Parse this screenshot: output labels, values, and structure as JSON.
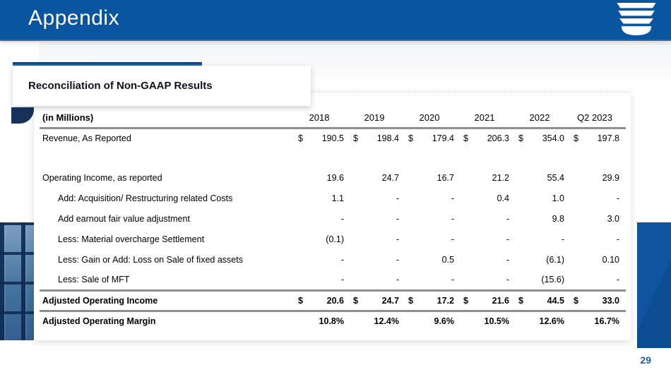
{
  "header": {
    "title": "Appendix",
    "logo_icon": "stacked-u-company-logo"
  },
  "card": {
    "title": "Reconciliation of Non-GAAP Results"
  },
  "footer": {
    "page_number": "29"
  },
  "table": {
    "unit_label": "(in Millions)",
    "currency_symbol": "$",
    "columns": [
      "2018",
      "2019",
      "2020",
      "2021",
      "2022",
      "Q2 2023"
    ],
    "rows": [
      {
        "label": "Revenue, As Reported",
        "indent": 0,
        "bold": false,
        "currency": true,
        "values": [
          "190.5",
          "198.4",
          "179.4",
          "206.3",
          "354.0",
          "197.8"
        ],
        "spacer_after": true
      },
      {
        "label": "Operating Income, as reported",
        "indent": 0,
        "bold": false,
        "currency": false,
        "values": [
          "19.6",
          "24.7",
          "16.7",
          "21.2",
          "55.4",
          "29.9"
        ]
      },
      {
        "label": "Add: Acquisition/ Restructuring related Costs",
        "indent": 1,
        "bold": false,
        "currency": false,
        "values": [
          "1.1",
          "-",
          "-",
          "0.4",
          "1.0",
          "-"
        ]
      },
      {
        "label": "Add earnout fair value adjustment",
        "indent": 1,
        "bold": false,
        "currency": false,
        "values": [
          "-",
          "-",
          "-",
          "-",
          "9.8",
          "3.0"
        ]
      },
      {
        "label": "Less: Material overcharge Settlement",
        "indent": 1,
        "bold": false,
        "currency": false,
        "values": [
          "(0.1)",
          "-",
          "-",
          "-",
          "-",
          "-"
        ]
      },
      {
        "label": "Less: Gain or Add: Loss on Sale of fixed assets",
        "indent": 1,
        "bold": false,
        "currency": false,
        "values": [
          "-",
          "-",
          "0.5",
          "-",
          "(6.1)",
          "0.10"
        ]
      },
      {
        "label": "Less: Sale of MFT",
        "indent": 1,
        "bold": false,
        "currency": false,
        "values": [
          "-",
          "-",
          "-",
          "-",
          "(15.6)",
          "-"
        ],
        "rule_after": true
      },
      {
        "label": "Adjusted Operating Income",
        "indent": 0,
        "bold": true,
        "currency": true,
        "values": [
          "20.6",
          "24.7",
          "17.2",
          "21.6",
          "44.5",
          "33.0"
        ],
        "rule_after": true
      },
      {
        "label": "Adjusted Operating Margin",
        "indent": 0,
        "bold": true,
        "currency": false,
        "values": [
          "10.8%",
          "12.4%",
          "9.6%",
          "10.5%",
          "12.6%",
          "16.7%"
        ]
      }
    ]
  },
  "colors": {
    "header_blue": "#0a55a0",
    "band_blue": "#0e549e",
    "accent_bar_blue": "#1d5c9e",
    "corner_navy": "#17335c",
    "rule_gray": "#8f8f8f",
    "page_number_blue": "#2a5ca8",
    "facade_navy": "#0e3a6e",
    "facade_blue": "#4a7cb0"
  }
}
